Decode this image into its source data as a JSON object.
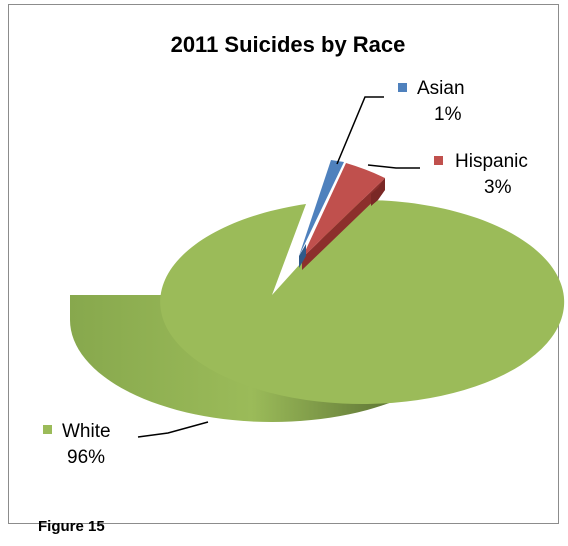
{
  "chart_data": {
    "type": "pie",
    "title": "2011 Suicides by Race",
    "slices": [
      {
        "label": "Asian",
        "value": 1,
        "value_label": "1%",
        "color": "#4f81bd"
      },
      {
        "label": "Hispanic",
        "value": 3,
        "value_label": "3%",
        "color": "#c0504d"
      },
      {
        "label": "White",
        "value": 96,
        "value_label": "96%",
        "color": "#9bbb59"
      }
    ],
    "three_d": true,
    "legend": "none (data labels with leader lines)"
  },
  "caption": "Figure 15"
}
